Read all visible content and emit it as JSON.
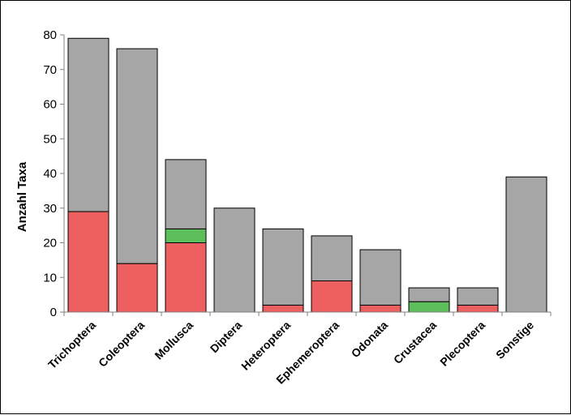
{
  "chart_data": {
    "type": "bar",
    "stacked": true,
    "title": "",
    "xlabel": "",
    "ylabel": "Anzahl Taxa",
    "ylim": [
      0,
      80
    ],
    "yticks": [
      0,
      10,
      20,
      30,
      40,
      50,
      60,
      70,
      80
    ],
    "grid": false,
    "legend": "none",
    "categories": [
      "Trichoptera",
      "Coleoptera",
      "Mollusca",
      "Diptera",
      "Heteroptera",
      "Ephemeroptera",
      "Odonata",
      "Crustacea",
      "Plecoptera",
      "Sonstige"
    ],
    "series": [
      {
        "color": "#ee6060",
        "values": [
          29,
          14,
          20,
          0,
          2,
          9,
          2,
          0,
          2,
          0
        ]
      },
      {
        "color": "#5cbf5c",
        "values": [
          0,
          0,
          4,
          0,
          0,
          0,
          0,
          3,
          0,
          0
        ]
      },
      {
        "color": "#a6a6a6",
        "values": [
          50,
          62,
          20,
          30,
          22,
          13,
          16,
          4,
          5,
          39
        ]
      }
    ]
  }
}
